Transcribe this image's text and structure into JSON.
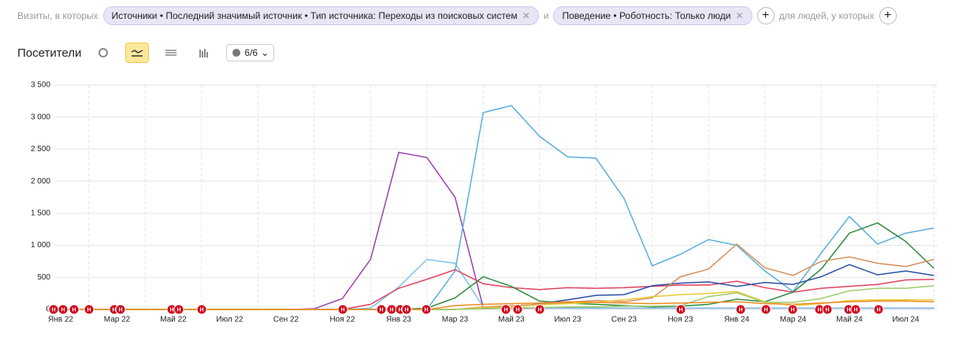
{
  "filters": {
    "prefix": "Визиты, в которых",
    "chip1": "Источники • Последний значимый источник • Тип источника: Переходы из поисковых систем",
    "and": "и",
    "chip2": "Поведение • Роботность: Только люди",
    "suffix": "для людей, у которых"
  },
  "header": {
    "title": "Посетители",
    "segments": "6/6"
  },
  "chart_data": {
    "type": "line",
    "annotation_label": "Н",
    "categories": [
      "Янв 22",
      null,
      "Мар 22",
      null,
      "Май 22",
      null,
      "Июл 22",
      null,
      "Сен 22",
      null,
      "Ноя 22",
      null,
      "Янв 23",
      null,
      "Мар 23",
      null,
      "Май 23",
      null,
      "Июл 23",
      null,
      "Сен 23",
      null,
      "Ноя 23",
      null,
      "Янв 24",
      null,
      "Мар 24",
      null,
      "Май 24",
      null,
      "Июл 24",
      null
    ],
    "ylim": [
      0,
      3500
    ],
    "yticks": [
      0,
      500,
      {
        "value": 1000,
        "label": "1 000"
      },
      {
        "value": 1500,
        "label": "1 500"
      },
      {
        "value": 2000,
        "label": "2 000"
      },
      {
        "value": 2500,
        "label": "2 500"
      },
      {
        "value": 3000,
        "label": "3 000"
      },
      {
        "value": 3500,
        "label": "3 500"
      }
    ],
    "grid": true,
    "series": [
      {
        "color": "#9c3fb0",
        "values": [
          0,
          0,
          0,
          0,
          0,
          0,
          0,
          0,
          0,
          10,
          170,
          780,
          2450,
          2370,
          1750,
          30,
          20,
          20,
          20,
          20,
          20,
          20,
          20,
          20,
          20,
          20,
          20,
          20,
          20,
          20,
          20,
          20
        ]
      },
      {
        "color": "#7dc3ea",
        "values": [
          0,
          0,
          0,
          0,
          0,
          0,
          0,
          0,
          0,
          0,
          0,
          20,
          350,
          780,
          720,
          40,
          30,
          20,
          20,
          20,
          20,
          20,
          20,
          20,
          20,
          20,
          20,
          20,
          20,
          20,
          20,
          20
        ]
      },
      {
        "color": "#5aaee0",
        "values": [
          0,
          0,
          0,
          0,
          0,
          0,
          0,
          0,
          0,
          0,
          0,
          0,
          0,
          0,
          600,
          3070,
          3180,
          2700,
          2380,
          2360,
          1730,
          680,
          860,
          1090,
          1000,
          600,
          280,
          880,
          1450,
          1020,
          1190,
          1270
        ]
      },
      {
        "color": "#e0405f",
        "values": [
          0,
          0,
          0,
          0,
          0,
          0,
          0,
          0,
          0,
          0,
          0,
          80,
          330,
          470,
          620,
          400,
          340,
          310,
          340,
          330,
          340,
          360,
          380,
          380,
          440,
          340,
          270,
          330,
          360,
          390,
          460,
          470
        ]
      },
      {
        "color": "#2e8b3d",
        "values": [
          0,
          0,
          0,
          0,
          0,
          0,
          0,
          0,
          0,
          0,
          0,
          0,
          0,
          20,
          180,
          510,
          360,
          130,
          100,
          80,
          60,
          40,
          50,
          80,
          160,
          120,
          270,
          630,
          1190,
          1350,
          1060,
          640
        ]
      },
      {
        "color": "#2a4fa8",
        "values": [
          0,
          0,
          0,
          0,
          0,
          0,
          0,
          0,
          0,
          0,
          0,
          0,
          0,
          0,
          0,
          20,
          30,
          90,
          150,
          220,
          230,
          370,
          410,
          430,
          360,
          420,
          390,
          510,
          700,
          540,
          600,
          530
        ]
      },
      {
        "color": "#d4915b",
        "values": [
          0,
          0,
          0,
          0,
          0,
          0,
          0,
          0,
          0,
          0,
          0,
          0,
          0,
          0,
          0,
          40,
          60,
          80,
          110,
          140,
          120,
          180,
          510,
          630,
          1020,
          650,
          530,
          750,
          820,
          720,
          670,
          780
        ]
      },
      {
        "color": "#e8c93a",
        "values": [
          0,
          0,
          0,
          0,
          0,
          0,
          0,
          0,
          0,
          0,
          0,
          0,
          0,
          0,
          0,
          30,
          40,
          70,
          90,
          110,
          150,
          200,
          230,
          250,
          280,
          120,
          60,
          90,
          140,
          150,
          150,
          150
        ]
      },
      {
        "color": "#9fcc6a",
        "values": [
          0,
          0,
          0,
          0,
          0,
          0,
          0,
          0,
          0,
          0,
          0,
          0,
          0,
          0,
          0,
          10,
          20,
          30,
          40,
          40,
          50,
          50,
          60,
          200,
          260,
          110,
          110,
          170,
          290,
          330,
          330,
          370
        ]
      },
      {
        "color": "#f08a24",
        "values": [
          0,
          0,
          0,
          0,
          0,
          0,
          0,
          0,
          0,
          0,
          0,
          0,
          0,
          0,
          60,
          80,
          90,
          100,
          120,
          110,
          100,
          90,
          100,
          110,
          120,
          90,
          80,
          100,
          120,
          130,
          130,
          120
        ]
      }
    ]
  }
}
